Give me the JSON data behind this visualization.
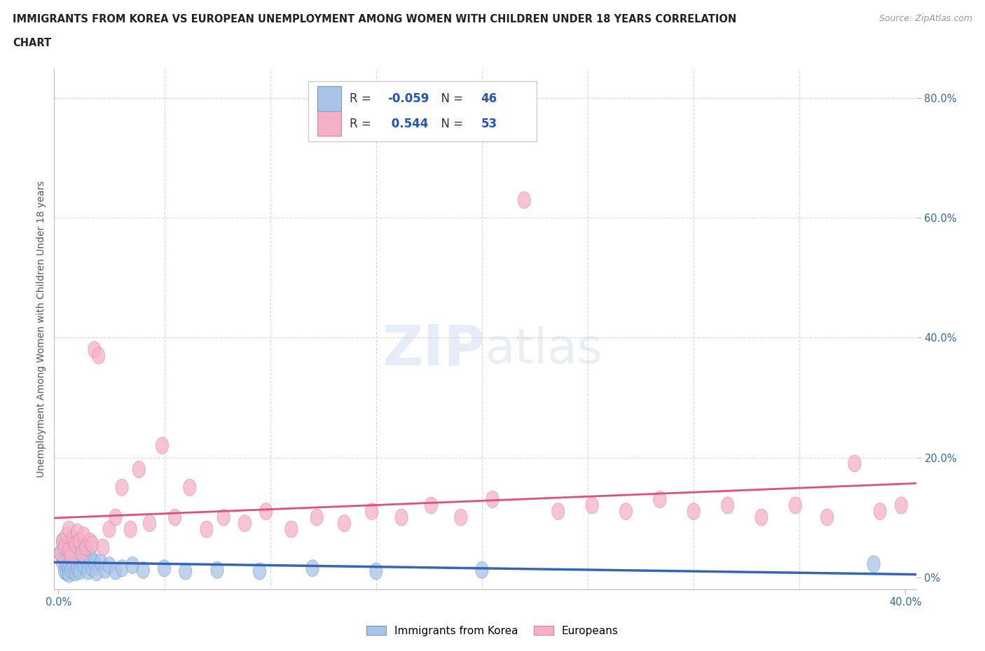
{
  "title_line1": "IMMIGRANTS FROM KOREA VS EUROPEAN UNEMPLOYMENT AMONG WOMEN WITH CHILDREN UNDER 18 YEARS CORRELATION",
  "title_line2": "CHART",
  "source": "Source: ZipAtlas.com",
  "ylabel": "Unemployment Among Women with Children Under 18 years",
  "xlim": [
    -0.002,
    0.405
  ],
  "ylim": [
    -0.02,
    0.85
  ],
  "xtick_positions": [
    0.0,
    0.4
  ],
  "xtick_labels": [
    "0.0%",
    "40.0%"
  ],
  "ytick_positions": [
    0.0,
    0.2,
    0.4,
    0.6,
    0.8
  ],
  "ytick_labels": [
    "0%",
    "20.0%",
    "40.0%",
    "60.0%",
    "80.0%"
  ],
  "grid_yticks": [
    0.2,
    0.4,
    0.6,
    0.8
  ],
  "grid_xticks": [
    0.05,
    0.1,
    0.15,
    0.2,
    0.25,
    0.3,
    0.35
  ],
  "korea_color": "#aac4e8",
  "europe_color": "#f5b0c8",
  "korea_edge_color": "#6699cc",
  "europe_edge_color": "#e080a0",
  "korea_line_color": "#3366bb",
  "europe_line_color": "#e05070",
  "R_korea": -0.059,
  "N_korea": 46,
  "R_europe": 0.544,
  "N_europe": 53,
  "watermark_zip": "ZIP",
  "watermark_atlas": "atlas",
  "legend_label_korea": "Immigrants from Korea",
  "legend_label_europe": "Europeans",
  "background_color": "#ffffff",
  "grid_color": "#d8d8d8",
  "stat_color": "#2255bb",
  "title_color": "#222222",
  "tick_color": "#3366aa",
  "korea_x": [
    0.001,
    0.002,
    0.002,
    0.003,
    0.003,
    0.003,
    0.004,
    0.004,
    0.004,
    0.005,
    0.005,
    0.005,
    0.005,
    0.006,
    0.006,
    0.007,
    0.007,
    0.008,
    0.008,
    0.009,
    0.009,
    0.01,
    0.01,
    0.011,
    0.012,
    0.013,
    0.014,
    0.015,
    0.016,
    0.017,
    0.018,
    0.02,
    0.022,
    0.024,
    0.027,
    0.03,
    0.035,
    0.04,
    0.05,
    0.06,
    0.075,
    0.095,
    0.12,
    0.15,
    0.2,
    0.385
  ],
  "korea_y": [
    0.04,
    0.06,
    0.025,
    0.05,
    0.03,
    0.01,
    0.045,
    0.02,
    0.008,
    0.055,
    0.035,
    0.015,
    0.005,
    0.04,
    0.012,
    0.05,
    0.02,
    0.035,
    0.008,
    0.045,
    0.015,
    0.03,
    0.01,
    0.04,
    0.02,
    0.03,
    0.01,
    0.035,
    0.015,
    0.025,
    0.008,
    0.025,
    0.012,
    0.02,
    0.01,
    0.015,
    0.02,
    0.012,
    0.015,
    0.01,
    0.012,
    0.01,
    0.015,
    0.01,
    0.012,
    0.022
  ],
  "europe_x": [
    0.001,
    0.002,
    0.003,
    0.004,
    0.005,
    0.005,
    0.006,
    0.007,
    0.008,
    0.009,
    0.01,
    0.011,
    0.012,
    0.013,
    0.015,
    0.016,
    0.017,
    0.019,
    0.021,
    0.024,
    0.027,
    0.03,
    0.034,
    0.038,
    0.043,
    0.049,
    0.055,
    0.062,
    0.07,
    0.078,
    0.088,
    0.098,
    0.11,
    0.122,
    0.135,
    0.148,
    0.162,
    0.176,
    0.19,
    0.205,
    0.22,
    0.236,
    0.252,
    0.268,
    0.284,
    0.3,
    0.316,
    0.332,
    0.348,
    0.363,
    0.376,
    0.388,
    0.398
  ],
  "europe_y": [
    0.04,
    0.06,
    0.05,
    0.07,
    0.045,
    0.08,
    0.035,
    0.065,
    0.055,
    0.075,
    0.06,
    0.04,
    0.07,
    0.05,
    0.06,
    0.055,
    0.38,
    0.37,
    0.05,
    0.08,
    0.1,
    0.15,
    0.08,
    0.18,
    0.09,
    0.22,
    0.1,
    0.15,
    0.08,
    0.1,
    0.09,
    0.11,
    0.08,
    0.1,
    0.09,
    0.11,
    0.1,
    0.12,
    0.1,
    0.13,
    0.63,
    0.11,
    0.12,
    0.11,
    0.13,
    0.11,
    0.12,
    0.1,
    0.12,
    0.1,
    0.19,
    0.11,
    0.12
  ]
}
